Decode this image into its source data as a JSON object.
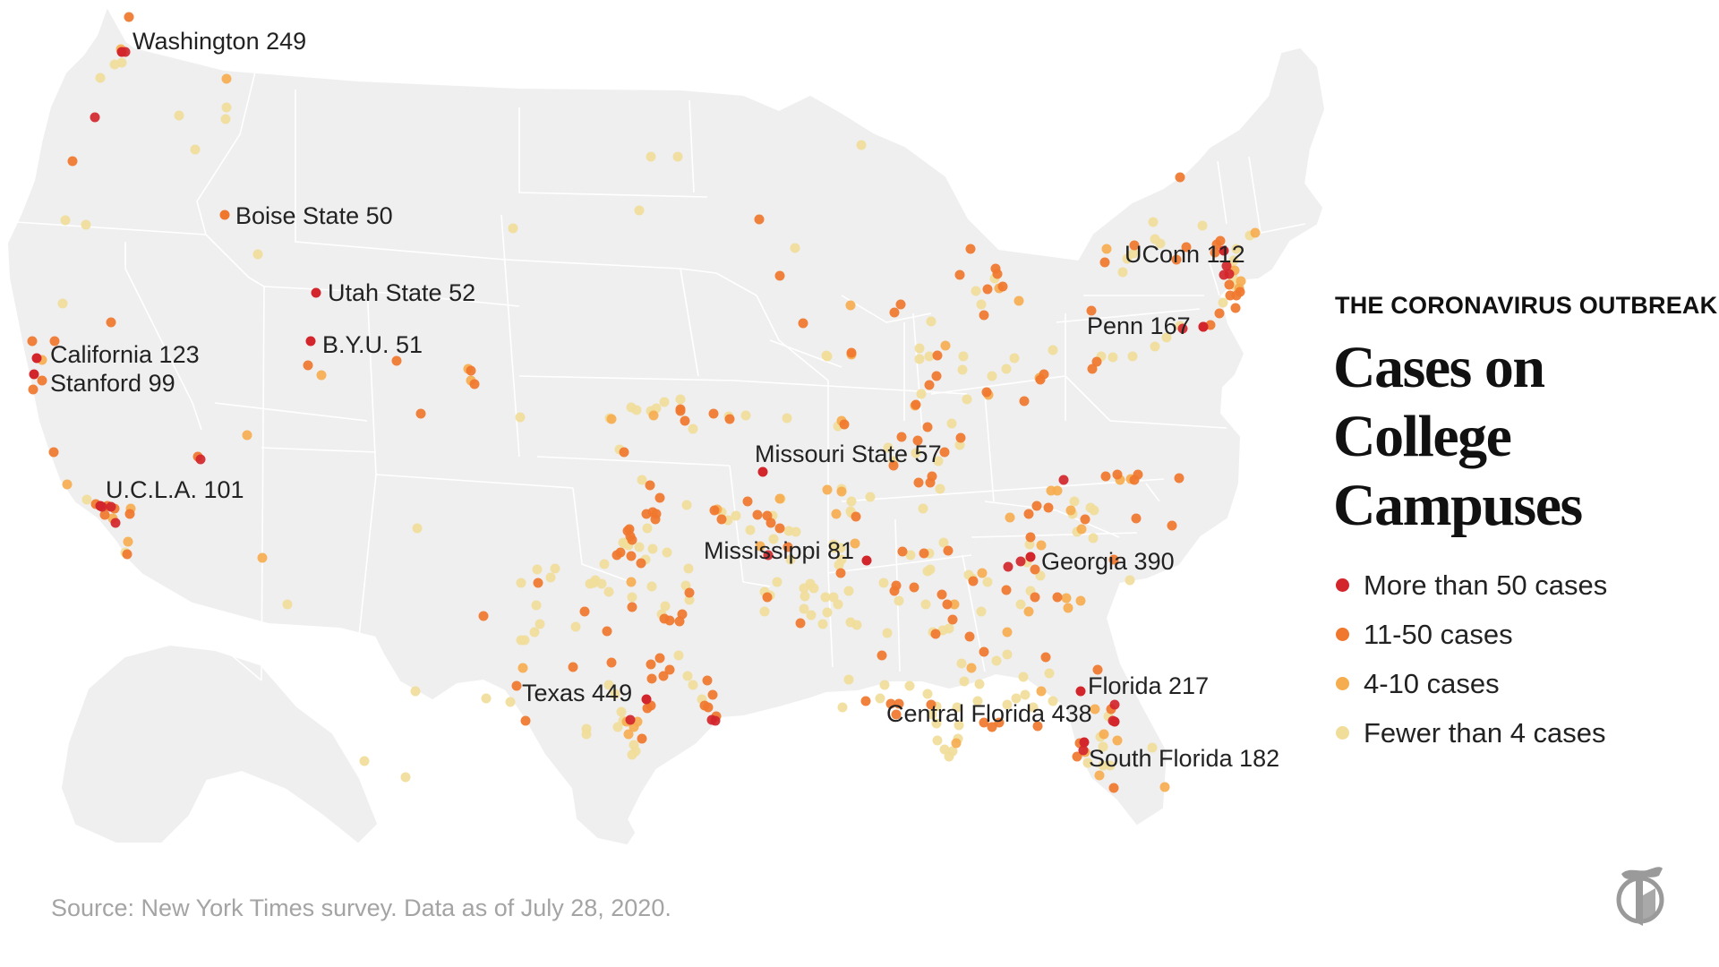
{
  "header": {
    "kicker": "THE CORONAVIRUS OUTBREAK",
    "headline": "Cases on College Campuses"
  },
  "legend": {
    "items": [
      {
        "label": "More than 50 cases",
        "color": "#d3262c"
      },
      {
        "label": "11-50 cases",
        "color": "#f0772e"
      },
      {
        "label": "4-10 cases",
        "color": "#f6ad4f"
      },
      {
        "label": "Fewer than 4 cases",
        "color": "#f1dd9a"
      }
    ]
  },
  "colors": {
    "land": "#efefef",
    "borders": "#ffffff",
    "labels": "#222222",
    "source_text": "#a4a4a4"
  },
  "labeled_schools": [
    {
      "name": "Washington",
      "cases": 249,
      "text": "Washington 249"
    },
    {
      "name": "Boise State",
      "cases": 50,
      "text": "Boise State 50"
    },
    {
      "name": "Utah State",
      "cases": 52,
      "text": "Utah State 52"
    },
    {
      "name": "B.Y.U.",
      "cases": 51,
      "text": "B.Y.U. 51"
    },
    {
      "name": "California",
      "cases": 123,
      "text": "California 123"
    },
    {
      "name": "Stanford",
      "cases": 99,
      "text": "Stanford 99"
    },
    {
      "name": "U.C.L.A.",
      "cases": 101,
      "text": "U.C.L.A. 101"
    },
    {
      "name": "Missouri State",
      "cases": 57,
      "text": "Missouri State 57"
    },
    {
      "name": "Mississippi",
      "cases": 81,
      "text": "Mississippi 81"
    },
    {
      "name": "Texas",
      "cases": 449,
      "text": "Texas 449"
    },
    {
      "name": "Georgia",
      "cases": 390,
      "text": "Georgia 390"
    },
    {
      "name": "Florida",
      "cases": 217,
      "text": "Florida 217"
    },
    {
      "name": "Central Florida",
      "cases": 438,
      "text": "Central Florida 438"
    },
    {
      "name": "South Florida",
      "cases": 182,
      "text": "South Florida 182"
    },
    {
      "name": "Penn",
      "cases": 167,
      "text": "Penn 167"
    },
    {
      "name": "UConn",
      "cases": 112,
      "text": "UConn 112"
    }
  ],
  "footer": {
    "source": "Source: New York Times survey. Data as of July 28, 2020."
  },
  "logo": {
    "icon": "nyt-logo-icon"
  }
}
